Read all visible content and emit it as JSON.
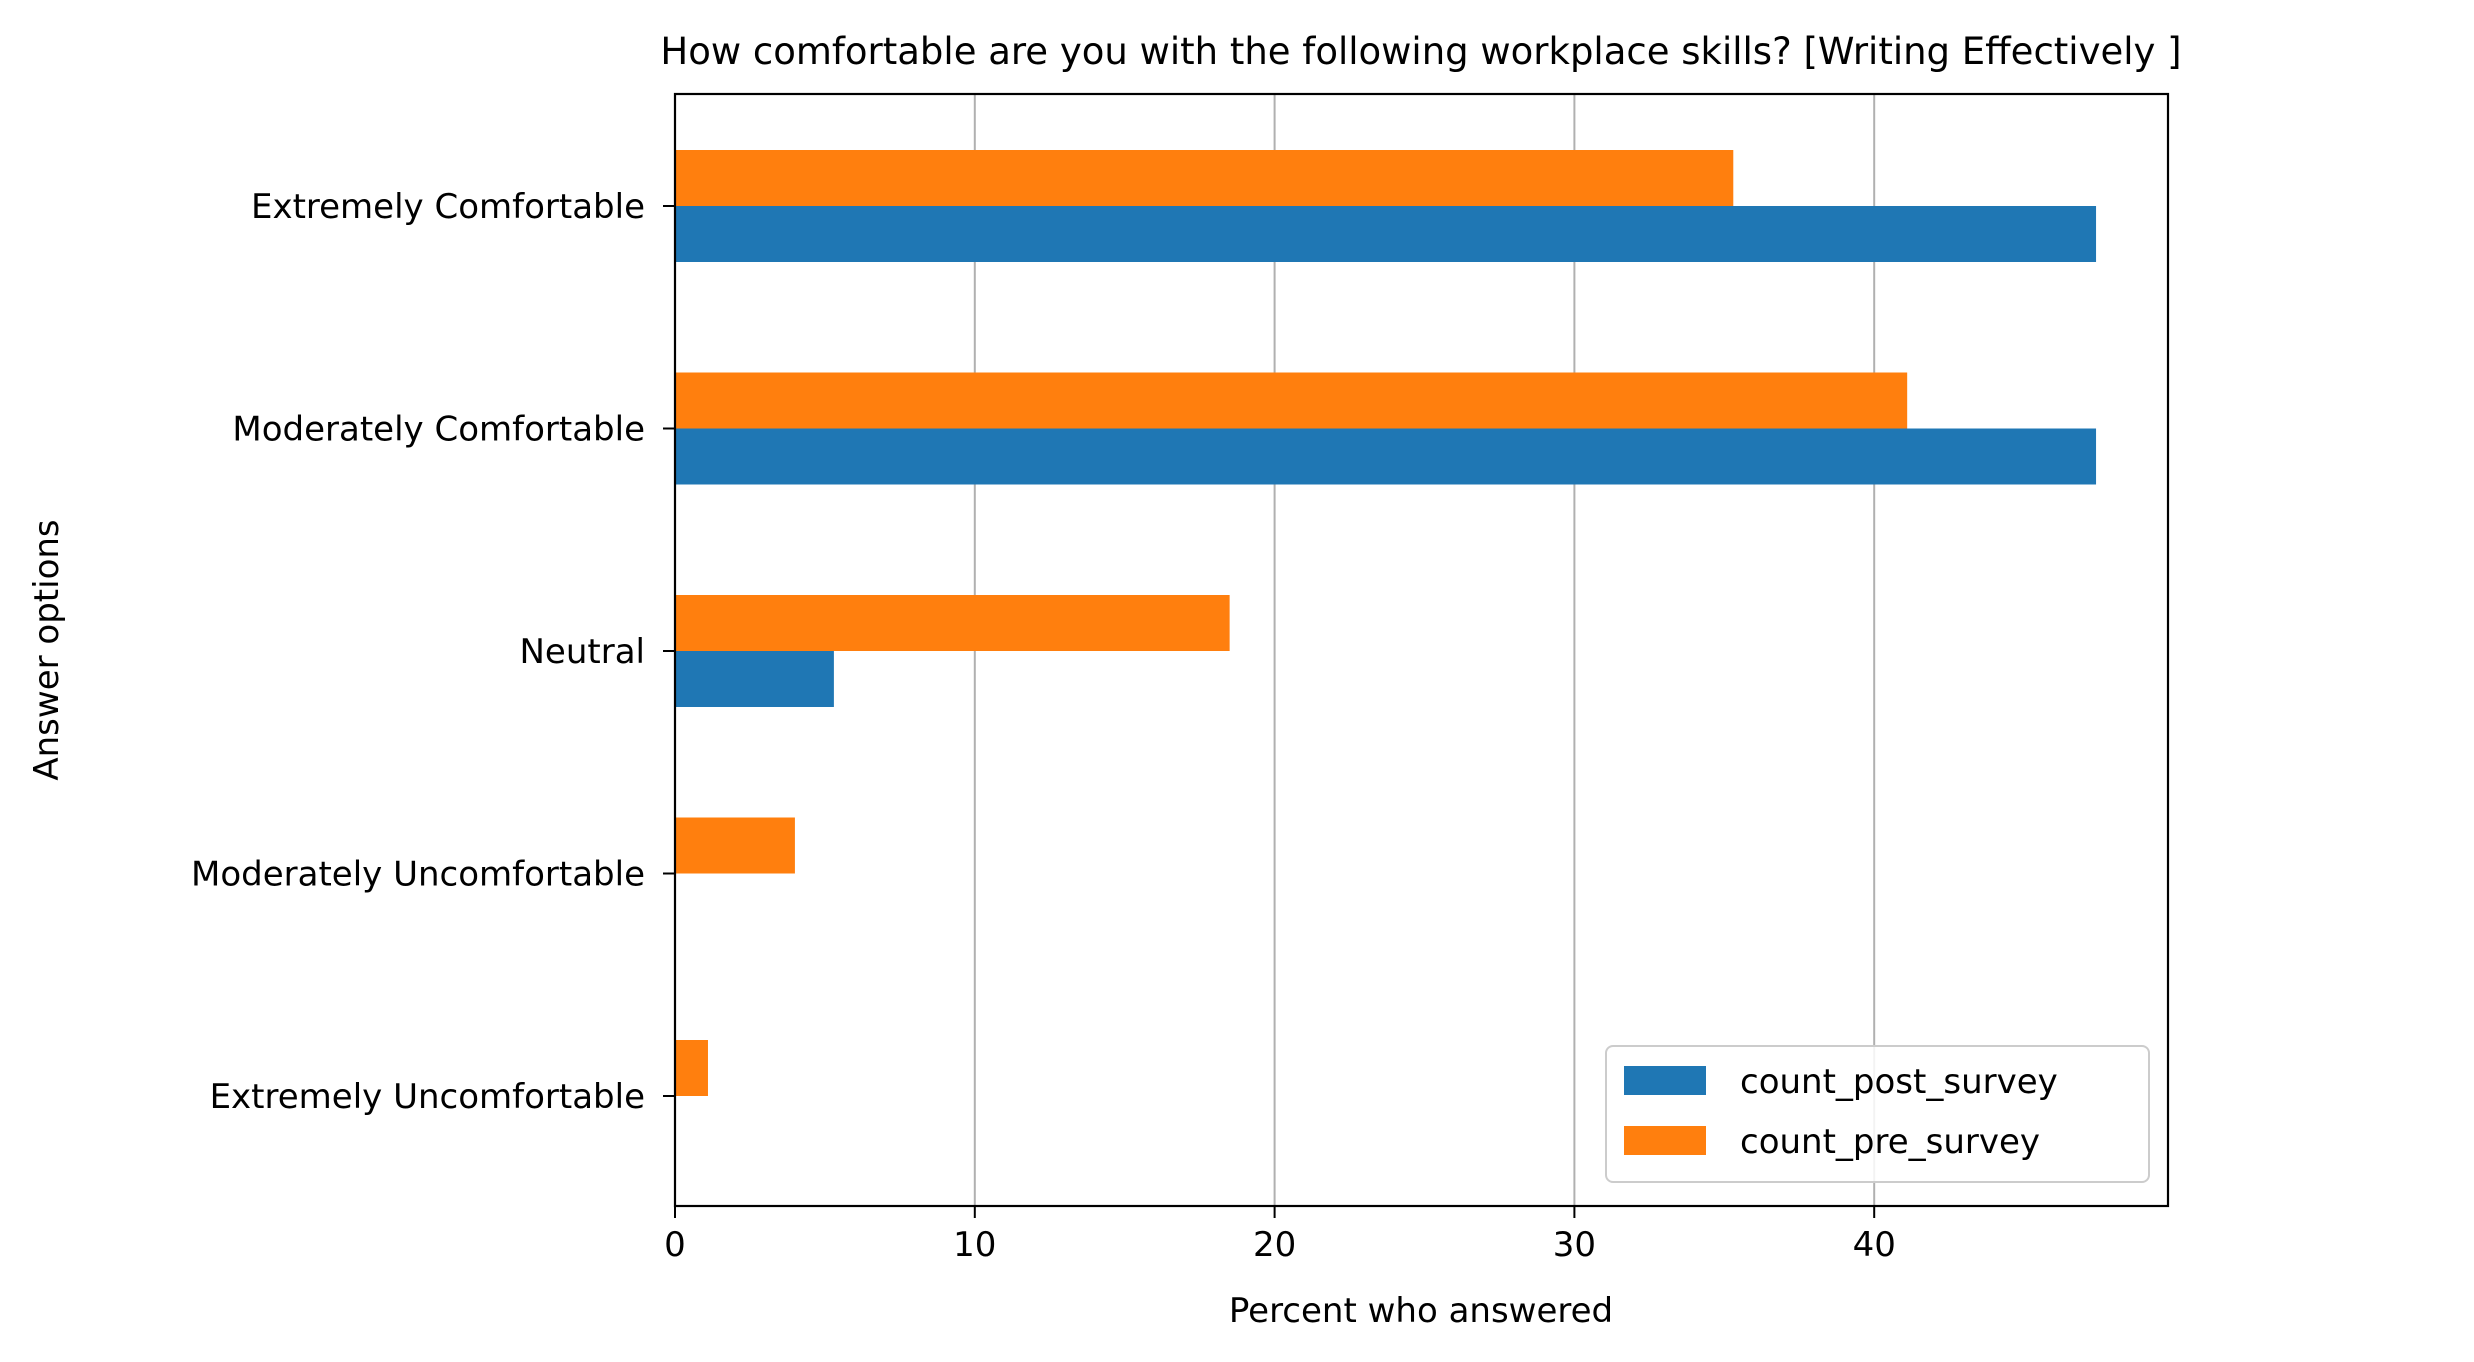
{
  "chart_data": {
    "type": "bar",
    "orientation": "horizontal",
    "title": "How comfortable are you with the following workplace skills? [Writing Effectively ]",
    "xlabel": "Percent who answered",
    "ylabel": "Answer options",
    "categories": [
      "Extremely Comfortable",
      "Moderately Comfortable",
      "Neutral",
      "Moderately Uncomfortable",
      "Extremely Uncomfortable"
    ],
    "series": [
      {
        "name": "count_post_survey",
        "color": "#1f77b4",
        "values": [
          47.4,
          47.4,
          5.3,
          0,
          0
        ]
      },
      {
        "name": "count_pre_survey",
        "color": "#ff7f0e",
        "values": [
          35.3,
          41.1,
          18.5,
          4.0,
          1.1
        ]
      }
    ],
    "xlim": [
      0,
      49.8
    ],
    "xticks": [
      0,
      10,
      20,
      30,
      40
    ],
    "grid": "vertical",
    "legend_position": "lower-right"
  }
}
